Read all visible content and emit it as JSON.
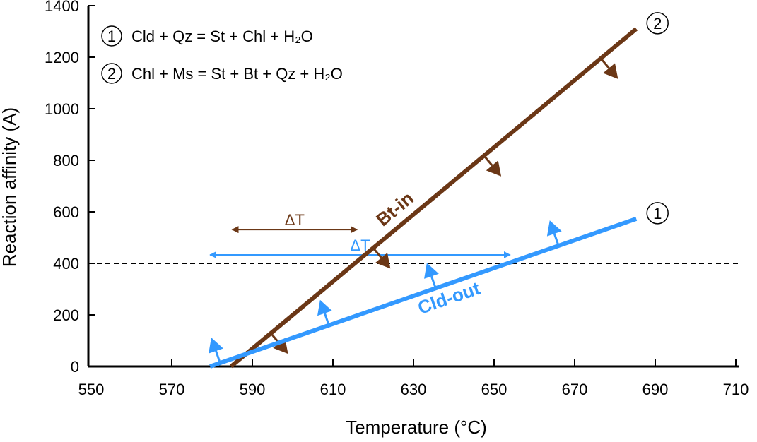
{
  "chart_data": {
    "type": "line",
    "title": "",
    "xlabel": "Temperature (°C)",
    "ylabel": "Reaction affinity (A)",
    "xlim": [
      550,
      710
    ],
    "ylim": [
      0,
      1400
    ],
    "xticks": [
      550,
      570,
      590,
      610,
      630,
      650,
      670,
      690,
      710
    ],
    "yticks": [
      0,
      200,
      400,
      600,
      800,
      1000,
      1200,
      1400
    ],
    "reference_line": {
      "y": 400,
      "style": "dashed",
      "color": "#000000"
    },
    "legend": {
      "placement": "top-left",
      "entries": [
        {
          "marker": "1",
          "text": "Cld + Qz = St + Chl + H₂O"
        },
        {
          "marker": "2",
          "text": "Chl + Ms = St + Bt + Qz + H₂O"
        }
      ]
    },
    "series": [
      {
        "name": "Bt-in",
        "marker": "2",
        "color": "#6b3716",
        "x": [
          584.7,
          685.3
        ],
        "y": [
          0,
          1310
        ],
        "arrows_at_x": [
          594.6,
          620,
          647.5,
          676.5
        ],
        "arrow_direction": "down"
      },
      {
        "name": "Cld-out",
        "marker": "1",
        "color": "#3399ff",
        "x": [
          579.5,
          685.3
        ],
        "y": [
          0,
          573
        ],
        "arrows_at_x": [
          582,
          609,
          635.5,
          666
        ],
        "arrow_direction": "up"
      }
    ],
    "annotations": [
      {
        "text": "ΔT",
        "color": "#6b3716",
        "x_from": 585,
        "x_to": 616,
        "y": 531
      },
      {
        "text": "ΔT",
        "color": "#3399ff",
        "x_from": 579.5,
        "x_to": 654,
        "y": 433
      }
    ]
  }
}
